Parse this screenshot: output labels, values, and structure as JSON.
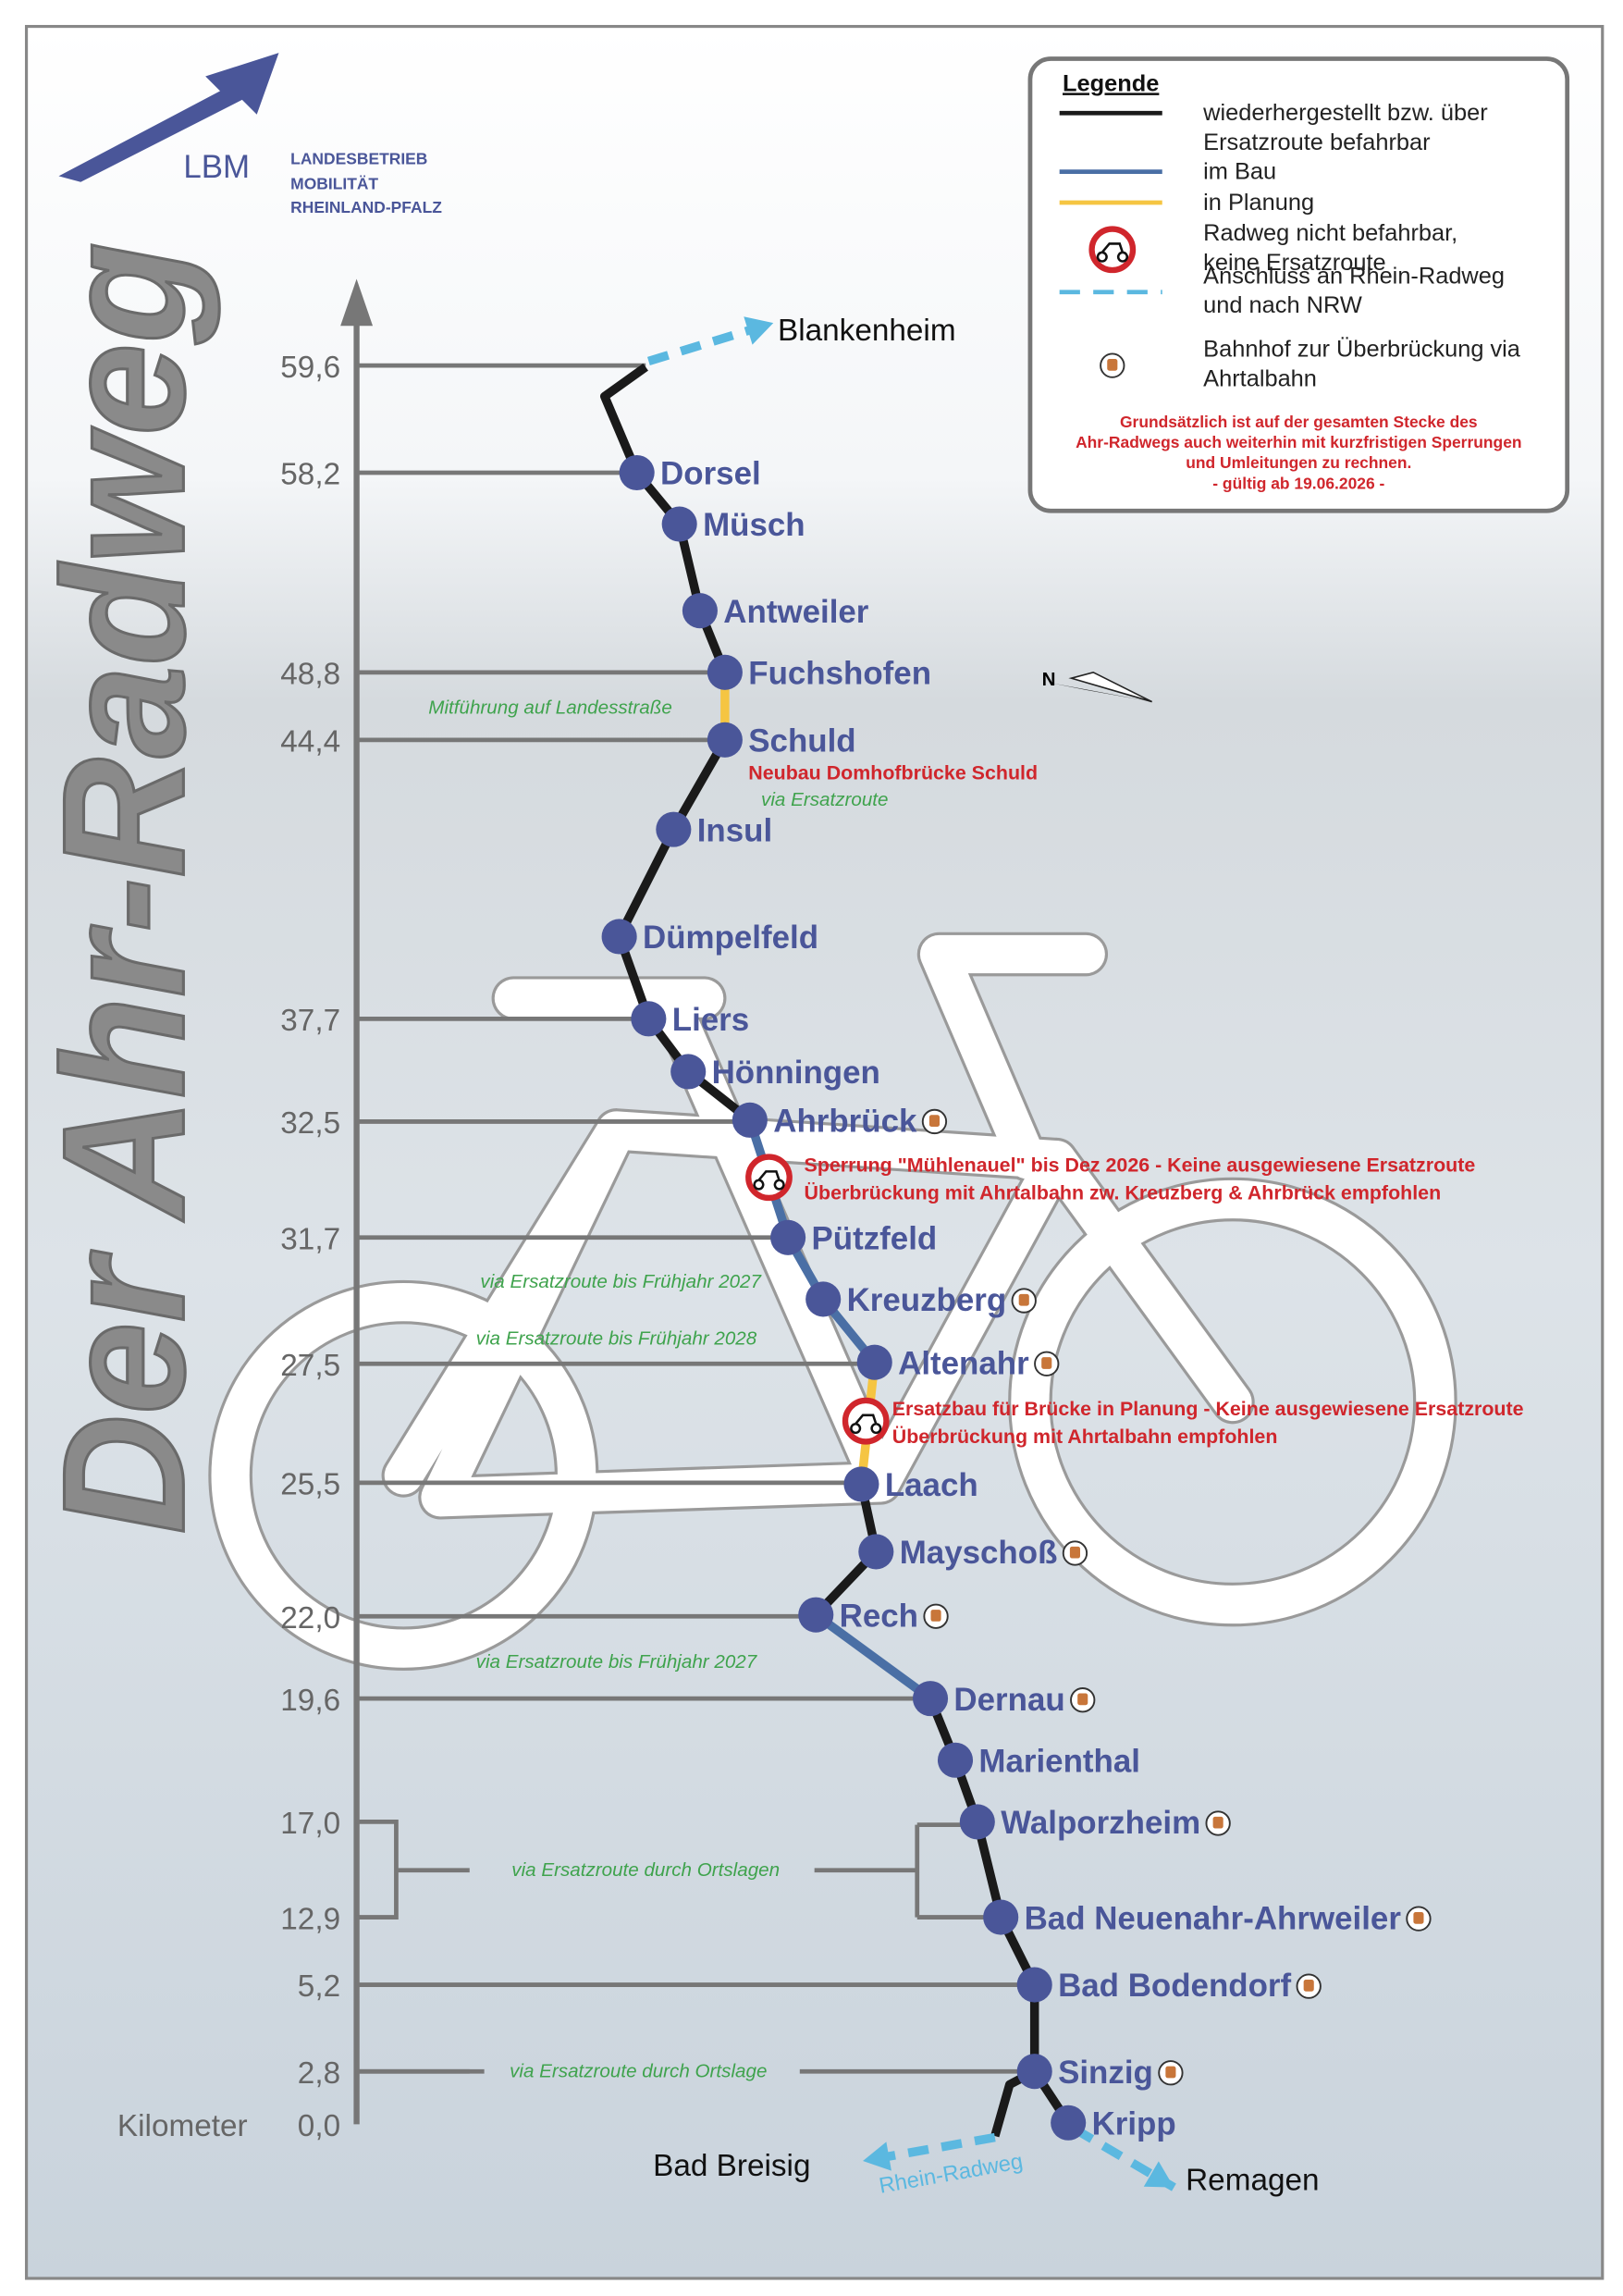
{
  "header": {
    "logo": "LBM",
    "org": [
      "LANDESBETRIEB",
      "MOBILITÄT",
      "RHEINLAND-PFALZ"
    ]
  },
  "title": "Der Ahr-Radweg",
  "legend": {
    "title": "Legende",
    "items": [
      {
        "label": [
          "wiederhergestellt bzw. über",
          "Ersatzroute befahrbar"
        ],
        "color": "#1a1a1a"
      },
      {
        "label": [
          "im Bau"
        ],
        "color": "#4a6fa5"
      },
      {
        "label": [
          "in Planung"
        ],
        "color": "#f5c542"
      },
      {
        "label": [
          "Radweg nicht befahrbar,",
          "keine Ersatzroute"
        ],
        "color": "#d0262c"
      },
      {
        "label": [
          "Anschluss an Rhein-Radweg",
          "und nach NRW"
        ],
        "color": "#5bb8e0"
      },
      {
        "label": [
          "Bahnhof zur Überbrückung via",
          "Ahrtalbahn"
        ],
        "color": "#c8763a"
      }
    ],
    "note": [
      "Grundsätzlich ist auf der gesamten Stecke des",
      "Ahr-Radwegs auch weiterhin mit kurzfristigen Sperrungen",
      "und Umleitungen zu rechnen.",
      "- gültig ab 19.06.2026 -"
    ]
  },
  "axis": {
    "label": "Kilometer",
    "ticks": [
      "59,6",
      "58,2",
      "48,8",
      "44,4",
      "37,7",
      "32,5",
      "31,7",
      "27,5",
      "25,5",
      "22,0",
      "19,6",
      "17,0",
      "12,9",
      "5,2",
      "2,8",
      "0,0"
    ]
  },
  "stations": [
    {
      "name": "Dorsel",
      "train": false
    },
    {
      "name": "Müsch",
      "train": false
    },
    {
      "name": "Antweiler",
      "train": false
    },
    {
      "name": "Fuchshofen",
      "train": false
    },
    {
      "name": "Schuld",
      "train": false
    },
    {
      "name": "Insul",
      "train": false
    },
    {
      "name": "Dümpelfeld",
      "train": false
    },
    {
      "name": "Liers",
      "train": false
    },
    {
      "name": "Hönningen",
      "train": false
    },
    {
      "name": "Ahrbrück",
      "train": true
    },
    {
      "name": "Pützfeld",
      "train": false
    },
    {
      "name": "Kreuzberg",
      "train": true
    },
    {
      "name": "Altenahr",
      "train": true
    },
    {
      "name": "Laach",
      "train": false
    },
    {
      "name": "Mayschoß",
      "train": true
    },
    {
      "name": "Rech",
      "train": true
    },
    {
      "name": "Dernau",
      "train": true
    },
    {
      "name": "Marienthal",
      "train": false
    },
    {
      "name": "Walporzheim",
      "train": true
    },
    {
      "name": "Bad Neuenahr-Ahrweiler",
      "train": true
    },
    {
      "name": "Bad Bodendorf",
      "train": true
    },
    {
      "name": "Sinzig",
      "train": true
    },
    {
      "name": "Kripp",
      "train": false
    }
  ],
  "endpoints": {
    "north": "Blankenheim",
    "south_west": "Bad Breisig",
    "south_east": "Remagen",
    "rhine": "Rhein-Radweg"
  },
  "north": "N",
  "annotations": {
    "green": [
      "Mitführung auf  Landesstraße",
      "via Ersatzroute",
      "via Ersatzroute bis Frühjahr 2027",
      "via Ersatzroute bis Frühjahr 2028",
      "via Ersatzroute bis Frühjahr 2027",
      "via Ersatzroute durch Ortslagen",
      "via Ersatzroute durch Ortslage"
    ],
    "red": [
      [
        "Neubau Domhofbrücke Schuld"
      ],
      [
        "Sperrung \"Mühlenauel\" bis Dez 2026 - Keine ausgewiesene Ersatzroute",
        "Überbrückung mit Ahrtalbahn zw. Kreuzberg & Ahrbrück empfohlen"
      ],
      [
        "Ersatzbau für Brücke in Planung - Keine ausgewiesene Ersatzroute",
        "Überbrückung mit Ahrtalbahn empfohlen"
      ]
    ]
  }
}
